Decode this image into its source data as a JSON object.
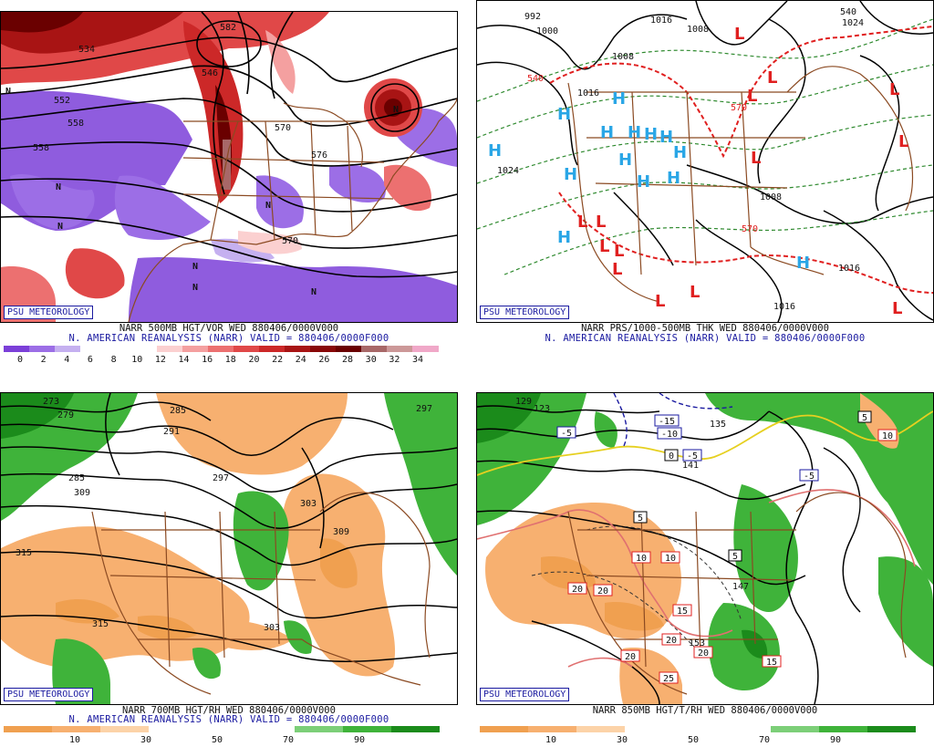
{
  "panels": [
    {
      "id": "p500",
      "badge": "PSU METEOROLOGY",
      "caption1": "NARR 500MB HGT/VOR WED 880406/0000V000",
      "caption2": "N. AMERICAN REANALYSIS (NARR) VALID = 880406/0000F000",
      "colorbar_colors": [
        "#7b3fd8",
        "#9c6ee6",
        "#c5b0f0",
        "#ffffff",
        "#ffffff",
        "#ffffff",
        "#fbd0d0",
        "#f4a0a0",
        "#ec7070",
        "#e04848",
        "#cc2828",
        "#a81414",
        "#880808",
        "#6a0000",
        "#a86868",
        "#cc9898",
        "#f0a8c8"
      ],
      "colorbar_labels": [
        "0",
        "2",
        "4",
        "6",
        "8",
        "10",
        "12",
        "14",
        "16",
        "18",
        "20",
        "22",
        "24",
        "26",
        "28",
        "30",
        "32",
        "34"
      ],
      "map_labels": [
        "552",
        "558",
        "570",
        "576",
        "570",
        "582",
        "534",
        "546",
        "558"
      ],
      "center_marks": [
        "N",
        "N",
        "N",
        "N",
        "N",
        "N",
        "N",
        "N"
      ]
    },
    {
      "id": "psfc",
      "badge": "PSU METEOROLOGY",
      "caption1": "NARR PRS/1000-500MB THK WED 880406/0000V000",
      "caption2": "N. AMERICAN REANALYSIS (NARR) VALID = 880406/0000F000",
      "map_labels": [
        "992",
        "1000",
        "1008",
        "1016",
        "1008",
        "1024",
        "1016",
        "1024",
        "1008",
        "1016",
        "1016",
        "540",
        "540",
        "570",
        "570"
      ],
      "high_marks": [
        "H",
        "H",
        "H",
        "H",
        "H",
        "H",
        "H",
        "H",
        "H",
        "H",
        "H",
        "H",
        "H",
        "H"
      ],
      "low_marks": [
        "L",
        "L",
        "L",
        "L",
        "L",
        "L",
        "L",
        "L",
        "L",
        "L",
        "L",
        "L",
        "L",
        "L"
      ]
    },
    {
      "id": "p700",
      "badge": "PSU METEOROLOGY",
      "caption1": "NARR 700MB HGT/RH WED 880406/0000V000",
      "caption2": "N. AMERICAN REANALYSIS (NARR) VALID = 880406/0000F000",
      "colorbar_colors": [
        "#f0a050",
        "#f7b070",
        "#fcd3a8",
        "#ffffff",
        "#ffffff",
        "#ffffff",
        "#7ccf78",
        "#3fb33a",
        "#1b8b1b"
      ],
      "colorbar_labels": [
        "10",
        "30",
        "50",
        "70",
        "90"
      ],
      "map_labels": [
        "273",
        "279",
        "285",
        "291",
        "297",
        "303",
        "309",
        "315",
        "315",
        "303",
        "309",
        "297",
        "285"
      ]
    },
    {
      "id": "p850",
      "badge": "PSU METEOROLOGY",
      "caption1": "NARR 850MB HGT/T/RH WED 880406/0000V000",
      "caption2": "",
      "colorbar_colors": [
        "#f0a050",
        "#f7b070",
        "#fcd3a8",
        "#ffffff",
        "#ffffff",
        "#ffffff",
        "#7ccf78",
        "#3fb33a",
        "#1b8b1b"
      ],
      "colorbar_labels": [
        "10",
        "30",
        "50",
        "70",
        "90"
      ],
      "map_labels": [
        "129",
        "123",
        "135",
        "141",
        "147",
        "153"
      ],
      "temp_boxes": [
        "-5",
        "-15",
        "-10",
        "-5",
        "0",
        "-5",
        "5",
        "5",
        "10",
        "10",
        "20",
        "20",
        "15",
        "20",
        "20",
        "25",
        "15",
        "5",
        "10",
        "20"
      ]
    }
  ],
  "colors": {
    "badge_text": "#1a1aa0",
    "caption2_text": "#1a1aa0",
    "high_color": "#2aa6e6",
    "low_color": "#e02020",
    "border_brown": "#8b4a22"
  }
}
